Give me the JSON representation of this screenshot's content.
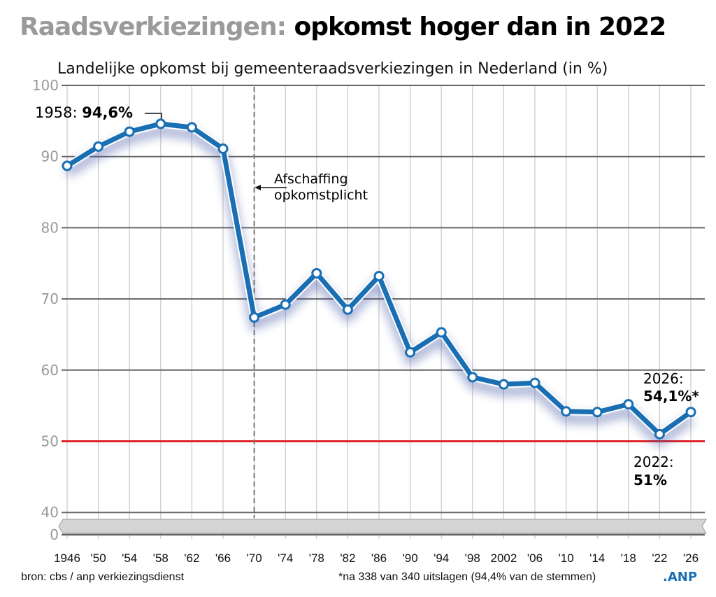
{
  "title_prefix": "Raadsverkiezingen:",
  "title_main": "opkomst hoger dan in 2022",
  "subtitle": "Landelijke opkomst bij gemeenteraadsverkiezingen in Nederland (in %)",
  "colors": {
    "line": "#1a6fb3",
    "reference": "#e0262b",
    "grid": "#666666"
  },
  "chart_data": {
    "type": "line",
    "title": "Landelijke opkomst bij gemeenteraadsverkiezingen in Nederland (in %)",
    "x": [
      1946,
      1950,
      1954,
      1958,
      1962,
      1966,
      1970,
      1974,
      1978,
      1982,
      1986,
      1990,
      1994,
      1998,
      2002,
      2006,
      2010,
      2014,
      2018,
      2022,
      2026
    ],
    "x_tick_labels": [
      "1946",
      "'50",
      "'54",
      "'58",
      "'62",
      "'66",
      "'70",
      "'74",
      "'78",
      "'82",
      "'86",
      "'90",
      "'94",
      "'98",
      "2002",
      "'06",
      "'10",
      "'14",
      "'18",
      "'22",
      "'26"
    ],
    "values": [
      88.7,
      91.4,
      93.5,
      94.6,
      94.1,
      91.1,
      67.4,
      69.2,
      73.6,
      68.5,
      73.2,
      62.5,
      65.3,
      59.0,
      58.0,
      58.2,
      54.2,
      54.1,
      55.2,
      51.0,
      54.1
    ],
    "y_ticks": [
      "100",
      "90",
      "80",
      "70",
      "60",
      "50",
      "40",
      "0"
    ],
    "ylim": [
      0,
      100
    ],
    "y_axis_break": true,
    "reference_line": 50,
    "vertical_marker": 1970,
    "annotations": {
      "peak_year": "1958:",
      "peak_value": "94,6%",
      "marker_line1": "Afschaffing",
      "marker_line2": "opkomstplicht",
      "latest_year": "2026:",
      "latest_value": "54,1%*",
      "low_year": "2022:",
      "low_value": "51%"
    },
    "grid": true
  },
  "footer": {
    "source": "bron: cbs / anp verkiezingsdienst",
    "note": "*na 338 van 340 uitslagen (94,4% van de stemmen)",
    "logo": ".ANP"
  }
}
